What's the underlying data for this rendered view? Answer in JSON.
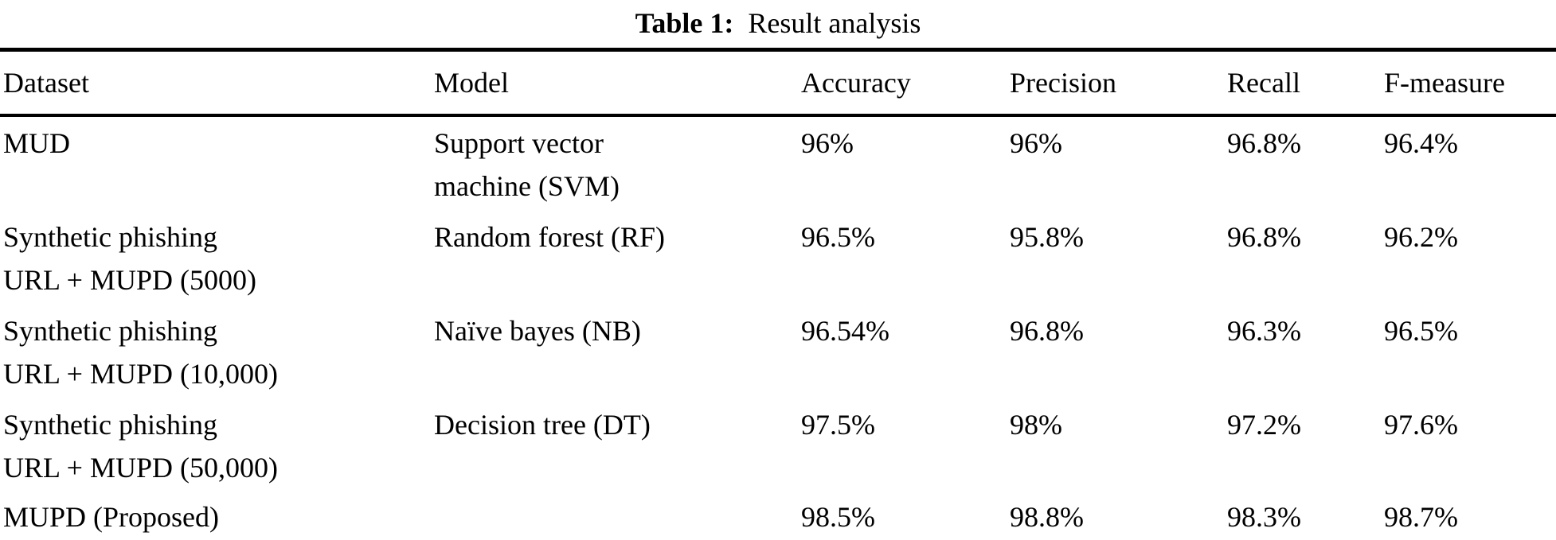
{
  "caption": {
    "label": "Table 1:",
    "title": "Result analysis"
  },
  "table": {
    "columns": [
      "Dataset",
      "Model",
      "Accuracy",
      "Precision",
      "Recall",
      "F-measure"
    ],
    "rows": [
      {
        "dataset": "MUD",
        "model": "Support vector\nmachine (SVM)",
        "accuracy": "96%",
        "precision": "96%",
        "recall": "96.8%",
        "f_measure": "96.4%"
      },
      {
        "dataset": "Synthetic phishing\nURL + MUPD (5000)",
        "model": "Random forest (RF)",
        "accuracy": "96.5%",
        "precision": "95.8%",
        "recall": "96.8%",
        "f_measure": "96.2%"
      },
      {
        "dataset": "Synthetic phishing\nURL + MUPD (10,000)",
        "model": "Naïve bayes (NB)",
        "accuracy": "96.54%",
        "precision": "96.8%",
        "recall": "96.3%",
        "f_measure": "96.5%"
      },
      {
        "dataset": "Synthetic phishing\nURL + MUPD (50,000)",
        "model": "Decision tree (DT)",
        "accuracy": "97.5%",
        "precision": "98%",
        "recall": "97.2%",
        "f_measure": "97.6%"
      },
      {
        "dataset": "MUPD (Proposed)",
        "model": "",
        "accuracy": "98.5%",
        "precision": "98.8%",
        "recall": "98.3%",
        "f_measure": "98.7%"
      }
    ],
    "colors": {
      "text": "#000000",
      "rules": "#000000",
      "background": "#ffffff"
    }
  }
}
